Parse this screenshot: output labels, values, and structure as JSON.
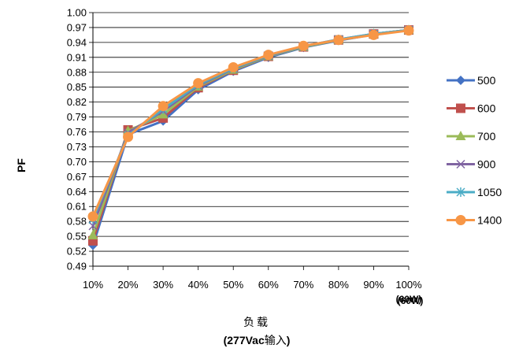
{
  "chart_data": {
    "type": "line",
    "categories": [
      "10%",
      "20%",
      "30%",
      "40%",
      "50%",
      "60%",
      "70%",
      "80%",
      "90%",
      "100%"
    ],
    "category_note": "(60W)",
    "ylabel": "PF",
    "xlabel_line1": "负载",
    "xlabel_line2_bold": "(277Vac",
    "xlabel_line2_cn": "输入",
    "xlabel_line2_end": ")",
    "ylim": [
      0.49,
      1.0
    ],
    "yticks": [
      "0.49",
      "0.52",
      "0.55",
      "0.58",
      "0.61",
      "0.64",
      "0.67",
      "0.70",
      "0.73",
      "0.76",
      "0.79",
      "0.82",
      "0.85",
      "0.88",
      "0.91",
      "0.94",
      "0.97",
      "1.00"
    ],
    "grid": true,
    "legend_position": "right",
    "series": [
      {
        "name": "500",
        "color": "#4472C4",
        "marker": "diamond",
        "values": [
          0.532,
          0.755,
          0.782,
          0.845,
          0.882,
          0.91,
          0.93,
          0.944,
          0.956,
          0.965
        ]
      },
      {
        "name": "600",
        "color": "#C0504D",
        "marker": "square",
        "values": [
          0.541,
          0.764,
          0.788,
          0.849,
          0.884,
          0.912,
          0.931,
          0.945,
          0.957,
          0.965
        ]
      },
      {
        "name": "700",
        "color": "#9BBB59",
        "marker": "triangle",
        "values": [
          0.552,
          0.762,
          0.795,
          0.851,
          0.885,
          0.912,
          0.931,
          0.945,
          0.957,
          0.965
        ]
      },
      {
        "name": "900",
        "color": "#8064A2",
        "marker": "x",
        "values": [
          0.571,
          0.758,
          0.802,
          0.853,
          0.887,
          0.913,
          0.932,
          0.946,
          0.957,
          0.965
        ]
      },
      {
        "name": "1050",
        "color": "#4BACC6",
        "marker": "star",
        "values": [
          0.584,
          0.753,
          0.806,
          0.855,
          0.888,
          0.914,
          0.932,
          0.946,
          0.957,
          0.965
        ]
      },
      {
        "name": "1400",
        "color": "#F79646",
        "marker": "circle",
        "values": [
          0.59,
          0.75,
          0.812,
          0.858,
          0.89,
          0.915,
          0.933,
          0.945,
          0.955,
          0.964
        ]
      }
    ]
  }
}
